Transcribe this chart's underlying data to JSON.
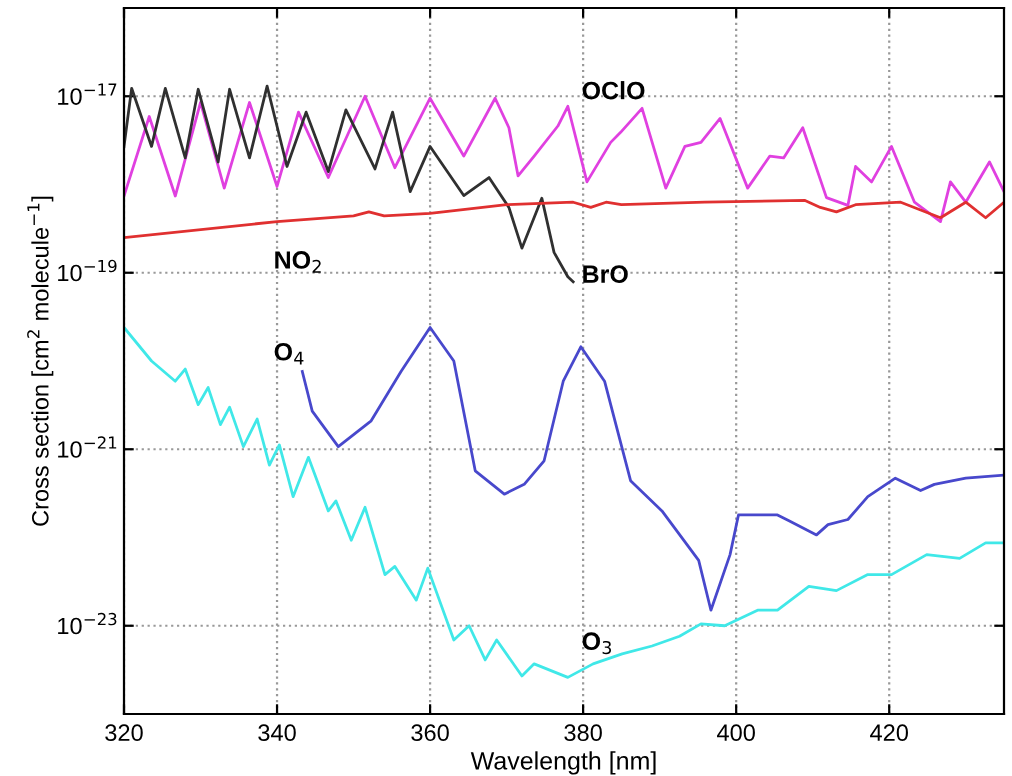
{
  "chart_data": {
    "type": "line",
    "xlabel": "Wavelength [nm]",
    "ylabel": "Cross section [cm$^{2}$ molecule$^{−1}$]",
    "log": "y",
    "grid": true,
    "legend": false,
    "marker": "none",
    "line_style": "solid",
    "xlim": [
      320,
      435
    ],
    "xticks": [
      320,
      340,
      360,
      380,
      400,
      420
    ],
    "ylim": [
      1e-24,
      1e-16
    ],
    "yticks": [
      {
        "value": 1e-17,
        "label": "10$^{−17}$"
      },
      {
        "value": 1e-19,
        "label": "10$^{−19}$"
      },
      {
        "value": 1e-21,
        "label": "10$^{−21}$"
      },
      {
        "value": 1e-23,
        "label": "10$^{−23}$"
      }
    ],
    "series": [
      {
        "name": "OClO",
        "color": "#e040e0",
        "x": [
          320,
          323.3,
          326.7,
          330,
          333.1,
          336.4,
          340,
          342.8,
          346.7,
          351.5,
          355.4,
          360,
          364.4,
          368.5,
          370.3,
          371.5,
          373.6,
          376.7,
          378,
          380.5,
          383.6,
          384.9,
          387.7,
          390.8,
          393.3,
          395.4,
          397.9,
          401.5,
          404.4,
          406.2,
          408.7,
          411.8,
          414.6,
          415.6,
          417.7,
          420.3,
          423.3,
          426.7,
          428,
          430,
          433.1,
          435
        ],
        "values": [
          7.4e-19,
          5.9e-18,
          7.4e-19,
          8.5e-18,
          9.1e-19,
          8.5e-18,
          9.5e-19,
          6.6e-18,
          1.2e-18,
          1e-17,
          1.55e-18,
          9.5e-18,
          2.1e-18,
          9.5e-18,
          4.4e-18,
          1.25e-18,
          2.1e-18,
          4.6e-18,
          7.7e-18,
          1.07e-18,
          3e-18,
          3.9e-18,
          7.3e-18,
          9.1e-19,
          2.7e-18,
          3e-18,
          5.6e-18,
          9.1e-19,
          2.1e-18,
          2e-18,
          4.4e-18,
          7.1e-19,
          5.8e-19,
          1.6e-18,
          1.07e-18,
          2.7e-18,
          6.3e-19,
          3.8e-19,
          1.07e-18,
          6.3e-19,
          1.8e-18,
          8.3e-19
        ]
      },
      {
        "name": "BrO",
        "color": "#303030",
        "x": [
          320,
          321,
          323.6,
          325.4,
          328,
          329.7,
          332.3,
          333.8,
          336.4,
          338.7,
          341.3,
          343.8,
          346.7,
          349,
          352.8,
          355.1,
          357.4,
          360,
          364.4,
          367.7,
          370.3,
          372,
          374.6,
          376.2,
          378,
          378.7
        ],
        "values": [
          2.7e-18,
          1.23e-17,
          2.7e-18,
          1.23e-17,
          2e-18,
          1.2e-17,
          1.8e-18,
          1.2e-17,
          2e-18,
          1.3e-17,
          1.6e-18,
          6.6e-18,
          1.4e-18,
          7e-18,
          1.5e-18,
          6.6e-18,
          8.3e-19,
          2.7e-18,
          7.5e-19,
          1.2e-18,
          5.5e-19,
          1.9e-19,
          7e-19,
          1.7e-19,
          9e-20,
          7.9e-20
        ]
      },
      {
        "name": "NO$_{2}$",
        "color": "#e03030",
        "x": [
          320,
          340,
          350,
          352,
          354,
          360,
          370,
          378.7,
          381,
          383,
          385,
          395.9,
          409,
          411,
          413.1,
          415.6,
          421.5,
          426.7,
          430,
          432.6,
          435
        ],
        "values": [
          2.5e-19,
          3.8e-19,
          4.4e-19,
          4.9e-19,
          4.4e-19,
          4.7e-19,
          5.9e-19,
          6.3e-19,
          5.5e-19,
          6.3e-19,
          5.9e-19,
          6.3e-19,
          6.6e-19,
          5.5e-19,
          4.9e-19,
          5.9e-19,
          6.3e-19,
          4.2e-19,
          6.3e-19,
          4.2e-19,
          6.3e-19
        ]
      },
      {
        "name": "O$_{4}$",
        "color": "#4848cc",
        "x": [
          343.3,
          344.6,
          348,
          352.3,
          356.2,
          360,
          363.1,
          365.9,
          369.7,
          372.3,
          374.9,
          377.4,
          379.7,
          382.8,
          386.2,
          390.3,
          395.1,
          396.7,
          399.2,
          400.3,
          405.4,
          406.9,
          410.5,
          412,
          414.6,
          417.2,
          420.8,
          424.1,
          425.9,
          430,
          435
        ],
        "values": [
          7.6e-21,
          2.7e-21,
          1.07e-21,
          2.1e-21,
          7.6e-21,
          2.4e-20,
          1e-20,
          5.7e-22,
          3.1e-22,
          4e-22,
          7.4e-22,
          5.9e-21,
          1.45e-20,
          5.9e-21,
          4.4e-22,
          2e-22,
          5.5e-23,
          1.5e-23,
          6.4e-23,
          1.8e-22,
          1.8e-22,
          1.55e-22,
          1.07e-22,
          1.4e-22,
          1.6e-22,
          2.9e-22,
          4.7e-22,
          3.4e-22,
          4e-22,
          4.7e-22,
          5.1e-22
        ]
      },
      {
        "name": "O$_{3}$",
        "color": "#40e8e8",
        "x": [
          320,
          323.6,
          326.7,
          328,
          329.7,
          331,
          332.6,
          333.8,
          335.6,
          337.4,
          339,
          340.3,
          342.1,
          344.1,
          346.7,
          347.7,
          349.7,
          351.5,
          354.1,
          355.4,
          358.2,
          359.7,
          363.1,
          365.1,
          367.2,
          368.7,
          372,
          373.6,
          378,
          381.3,
          385.1,
          389,
          392.6,
          395.4,
          398.5,
          402.8,
          405.4,
          409.5,
          413.1,
          417.2,
          420.3,
          424.9,
          429.2,
          432.6,
          435
        ],
        "values": [
          2.4e-20,
          1e-20,
          5.9e-21,
          8.1e-21,
          3.2e-21,
          5e-21,
          1.9e-21,
          3e-21,
          1.07e-21,
          2.2e-21,
          6.6e-22,
          1.12e-21,
          2.9e-22,
          8.1e-22,
          2e-22,
          2.6e-22,
          9.3e-23,
          2.2e-22,
          3.8e-23,
          4.7e-23,
          1.95e-23,
          4.5e-23,
          6.9e-24,
          1e-23,
          4.1e-24,
          6.9e-24,
          2.7e-24,
          3.7e-24,
          2.6e-24,
          3.7e-24,
          4.8e-24,
          5.9e-24,
          7.6e-24,
          1.05e-23,
          1e-23,
          1.5e-23,
          1.5e-23,
          2.8e-23,
          2.5e-23,
          3.8e-23,
          3.8e-23,
          6.4e-23,
          5.8e-23,
          8.7e-23,
          8.7e-23
        ]
      }
    ]
  }
}
